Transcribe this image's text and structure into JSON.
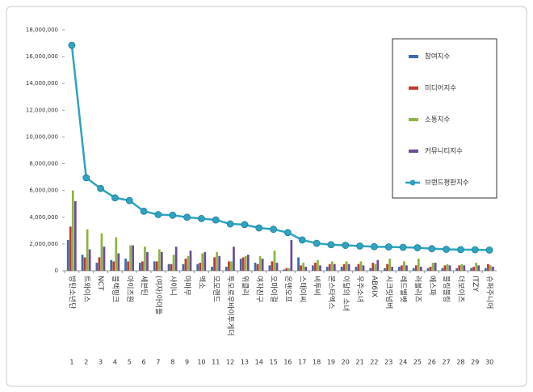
{
  "chart_data": {
    "type": "bar+line",
    "categories": [
      "방탄소년단",
      "트와이스",
      "NCT",
      "블랙핑크",
      "아이즈원",
      "세븐틴",
      "(여자)아이들",
      "샤이니",
      "마마무",
      "엑소",
      "모모랜드",
      "투모로우바이투게더",
      "위클리",
      "여자친구",
      "오마이걸",
      "온앤오프",
      "스테이씨",
      "비투비",
      "몬스타엑스",
      "이달의 소녀",
      "우주소녀",
      "AB6IX",
      "시크릿넘버",
      "레드벨벳",
      "러블리즈",
      "에스파",
      "블링블링",
      "더보이즈",
      "ITZY",
      "슈퍼주니어"
    ],
    "ranks": [
      1,
      2,
      3,
      4,
      5,
      6,
      7,
      8,
      9,
      10,
      11,
      12,
      13,
      14,
      15,
      16,
      17,
      18,
      19,
      20,
      21,
      22,
      23,
      24,
      25,
      26,
      27,
      28,
      29,
      30
    ],
    "series": [
      {
        "name": "참여지수",
        "color": "#3a6bb0",
        "kind": "bar",
        "values": [
          2300000,
          1200000,
          600000,
          800000,
          900000,
          600000,
          700000,
          500000,
          500000,
          500000,
          300000,
          300000,
          900000,
          600000,
          400000,
          100000,
          1000000,
          400000,
          300000,
          300000,
          300000,
          200000,
          200000,
          300000,
          200000,
          200000,
          200000,
          200000,
          200000,
          200000
        ]
      },
      {
        "name": "미디어지수",
        "color": "#c0392f",
        "kind": "bar",
        "values": [
          3300000,
          1000000,
          1000000,
          700000,
          700000,
          700000,
          700000,
          500000,
          900000,
          600000,
          1000000,
          700000,
          1000000,
          500000,
          700000,
          200000,
          400000,
          600000,
          500000,
          500000,
          500000,
          600000,
          500000,
          400000,
          400000,
          300000,
          400000,
          400000,
          300000,
          500000
        ]
      },
      {
        "name": "소통지수",
        "color": "#8db443",
        "kind": "bar",
        "values": [
          6000000,
          3100000,
          2800000,
          2500000,
          1900000,
          1800000,
          1600000,
          1200000,
          1100000,
          1300000,
          1400000,
          700000,
          1100000,
          1100000,
          1500000,
          200000,
          600000,
          800000,
          700000,
          700000,
          700000,
          500000,
          900000,
          700000,
          900000,
          600000,
          500000,
          500000,
          600000,
          400000
        ]
      },
      {
        "name": "커뮤니티지수",
        "color": "#6b4c9a",
        "kind": "bar",
        "values": [
          5200000,
          1600000,
          1800000,
          1300000,
          1900000,
          1400000,
          1400000,
          1800000,
          1500000,
          1400000,
          1100000,
          1800000,
          1200000,
          900000,
          600000,
          2300000,
          300000,
          400000,
          500000,
          500000,
          400000,
          800000,
          300000,
          400000,
          300000,
          600000,
          400000,
          400000,
          400000,
          300000
        ]
      },
      {
        "name": "브랜드평판지수",
        "color": "#2fa3c0",
        "kind": "line",
        "values": [
          16850000,
          6950000,
          6150000,
          5450000,
          5250000,
          4450000,
          4200000,
          4150000,
          4000000,
          3900000,
          3800000,
          3500000,
          3450000,
          3200000,
          3100000,
          2850000,
          2300000,
          2050000,
          1950000,
          1900000,
          1850000,
          1800000,
          1780000,
          1750000,
          1720000,
          1650000,
          1600000,
          1580000,
          1570000,
          1550000
        ]
      }
    ],
    "ylim": [
      0,
      18000000
    ],
    "yticks": [
      {
        "value": 0,
        "label": "0"
      },
      {
        "value": 2000000,
        "label": "2,000,000"
      },
      {
        "value": 4000000,
        "label": "4,000,000"
      },
      {
        "value": 6000000,
        "label": "6,000,000"
      },
      {
        "value": 8000000,
        "label": "8,000,000"
      },
      {
        "value": 10000000,
        "label": "10,000,000"
      },
      {
        "value": 12000000,
        "label": "12,000,000"
      },
      {
        "value": 14000000,
        "label": "14,000,000"
      },
      {
        "value": 16000000,
        "label": "16,000,000"
      },
      {
        "value": 18000000,
        "label": "18,000,000"
      }
    ],
    "legend": "upper right",
    "grid": false
  }
}
